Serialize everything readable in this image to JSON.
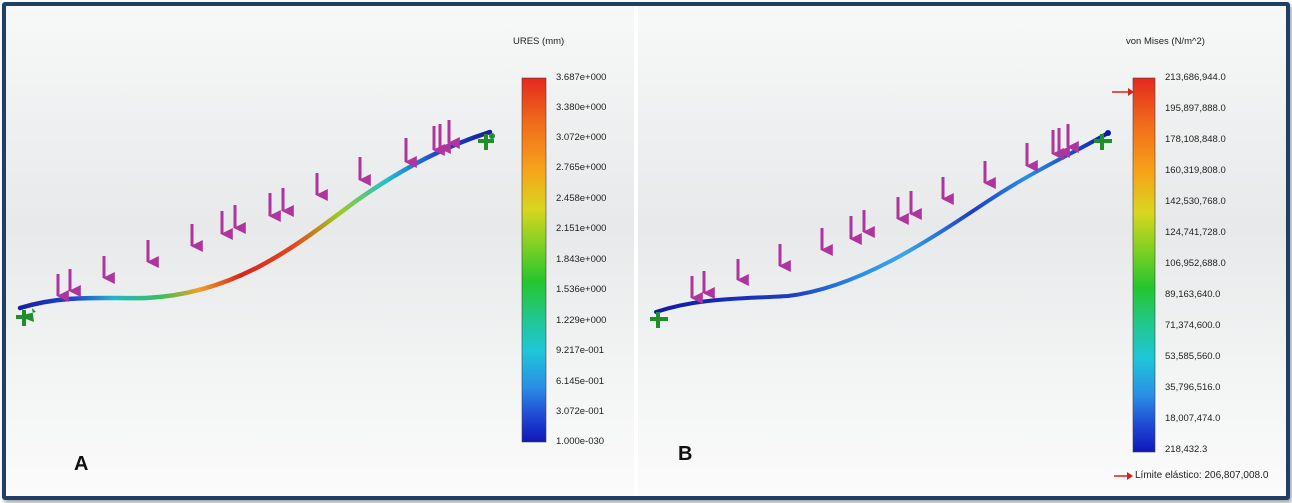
{
  "panels": {
    "a": {
      "label": "A",
      "colorbar_title": "URES (mm)",
      "ticks": [
        "3.687e+000",
        "3.380e+000",
        "3.072e+000",
        "2.765e+000",
        "2.458e+000",
        "2.151e+000",
        "1.843e+000",
        "1.536e+000",
        "1.229e+000",
        "9.217e-001",
        "6.145e-001",
        "3.072e-001",
        "1.000e-030"
      ]
    },
    "b": {
      "label": "B",
      "colorbar_title": "von Mises (N/m^2)",
      "ticks": [
        "213,686,944.0",
        "195,897,888.0",
        "178,108,848.0",
        "160,319,808.0",
        "142,530,768.0",
        "124,741,728.0",
        "106,952,688.0",
        "89,163,640.0",
        "71,374,600.0",
        "53,585,560.0",
        "35,796,516.0",
        "18,007,474.0",
        "218,432.3"
      ],
      "yield_label": "Límite elástico: 206,807,008.0"
    }
  },
  "colors": {
    "frame": "#1f3f66",
    "load_arrow": "#b0349e",
    "fixture": "#1f8f2a",
    "colorbar": [
      "#e5281f",
      "#f06a1a",
      "#f7a21b",
      "#d8d61f",
      "#7fd023",
      "#25c52e",
      "#22c78f",
      "#1fc6d8",
      "#2a8ee6",
      "#1f47d4",
      "#0f17b8"
    ]
  }
}
